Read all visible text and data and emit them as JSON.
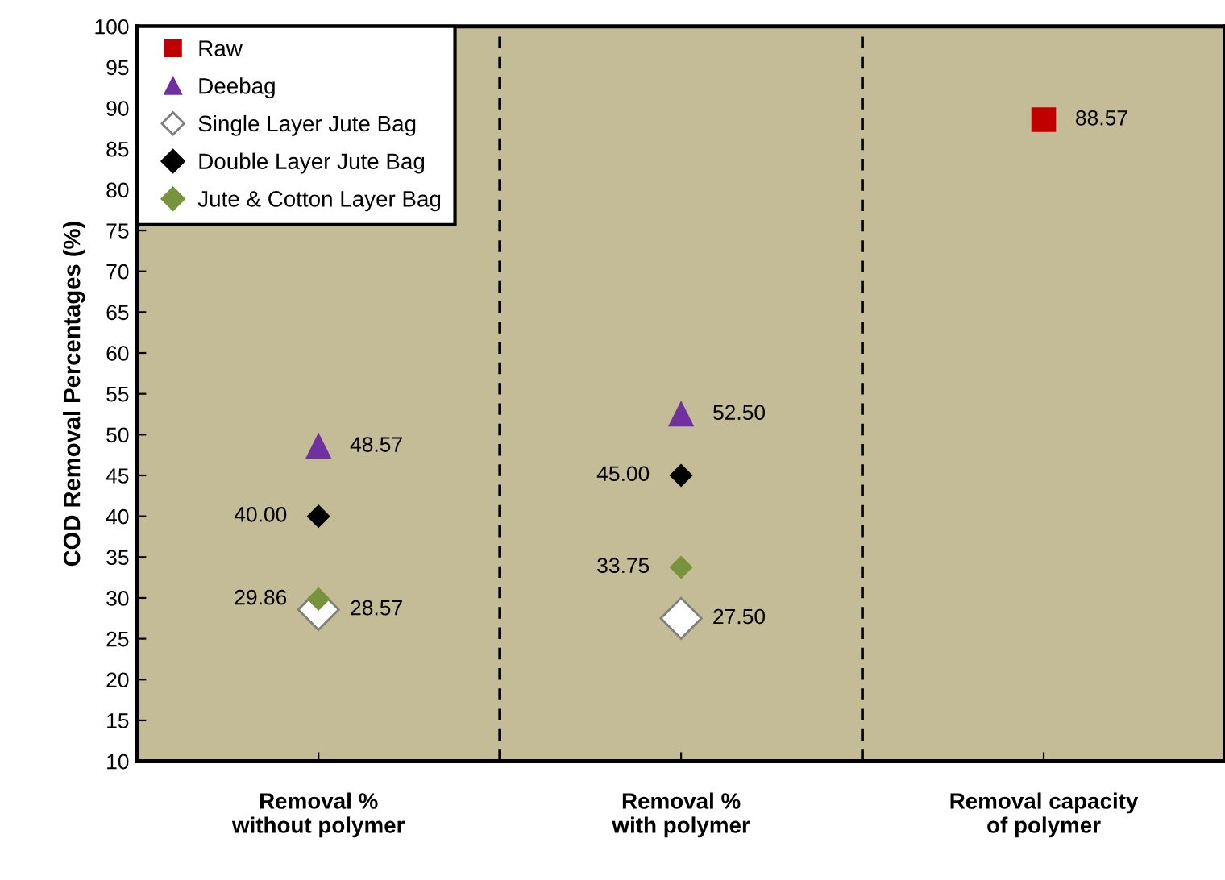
{
  "chart_data": {
    "type": "scatter",
    "ylabel": "COD Removal Percentages (%)",
    "categories": [
      "Removal %\nwithout polymer",
      "Removal %\nwith polymer",
      "Removal capacity\nof polymer"
    ],
    "series": [
      {
        "name": "Raw",
        "color": "#c00000",
        "marker": "square",
        "values": [
          null,
          null,
          88.57
        ],
        "value_labels": [
          null,
          null,
          "88.57"
        ]
      },
      {
        "name": "Deebag",
        "color": "#7030a0",
        "marker": "triangle",
        "values": [
          48.57,
          52.5,
          null
        ],
        "value_labels": [
          "48.57",
          "52.50",
          null
        ]
      },
      {
        "name": "Single Layer Jute Bag",
        "color": "#ffffff",
        "marker": "diamond",
        "values": [
          28.57,
          27.5,
          null
        ],
        "value_labels": [
          "28.57",
          "27.50",
          null
        ]
      },
      {
        "name": "Double Layer Jute Bag",
        "color": "#000000",
        "marker": "diamond",
        "values": [
          40.0,
          45.0,
          null
        ],
        "value_labels": [
          "40.00",
          "45.00",
          null
        ]
      },
      {
        "name": "Jute & Cotton Layer Bag",
        "color": "#77933c",
        "marker": "diamond",
        "values": [
          29.86,
          33.75,
          null
        ],
        "value_labels": [
          "29.86",
          "33.75",
          null
        ]
      }
    ],
    "ylim": [
      10,
      100
    ],
    "yticks": [
      10,
      15,
      20,
      25,
      30,
      35,
      40,
      45,
      50,
      55,
      60,
      65,
      70,
      75,
      80,
      85,
      90,
      95,
      100
    ],
    "grid": false,
    "legend": "top left"
  }
}
